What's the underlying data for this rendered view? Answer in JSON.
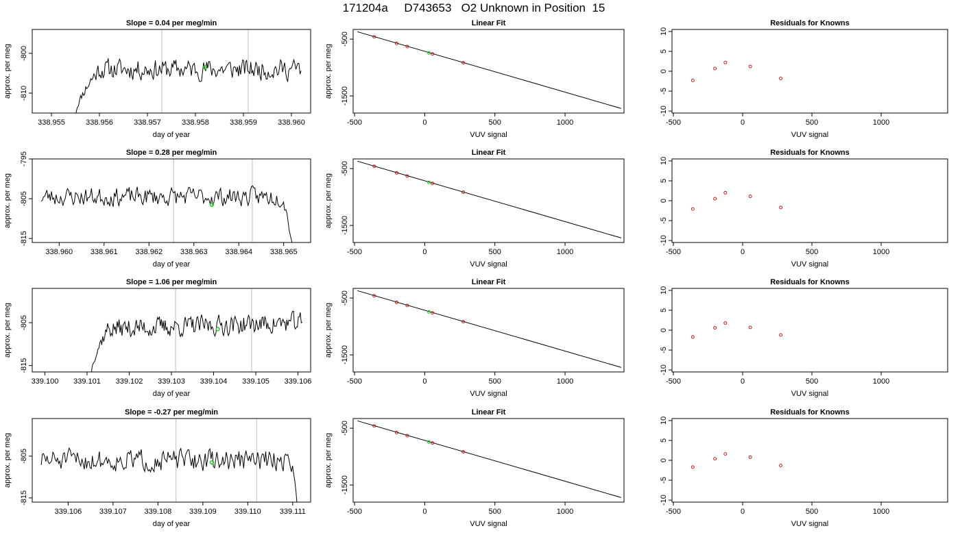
{
  "header": {
    "title": "171204a     D743653   O2 Unknown in Position  15"
  },
  "colors": {
    "trace": "#000000",
    "point": "#cc0000",
    "unknown": "#22cc22",
    "event_line": "#c8c8c8",
    "frame": "#000000"
  },
  "chart_data": [
    {
      "type": "line",
      "title": "Slope =  0.04  per meg/min",
      "xlabel": "day of year",
      "ylabel": "approx. per meg",
      "xlim": [
        338.9546,
        338.9604
      ],
      "ylim": [
        -815,
        -794
      ],
      "xticks": [
        "338.955",
        "338.956",
        "338.957",
        "338.958",
        "338.959",
        "338.960"
      ],
      "yticks": [
        "-800",
        "-810"
      ],
      "trace": {
        "x_start": 338.9555,
        "x_end": 338.9602,
        "baseline": -804,
        "noise": 2.2,
        "rise_from": -816,
        "rise_len": 0.0005,
        "seed": 11
      },
      "event_lines_x": [
        338.9573,
        338.9591
      ],
      "unknown_point": {
        "x": 338.9582,
        "y": -803.5
      }
    },
    {
      "type": "scatter",
      "title": "Linear Fit",
      "xlabel": "VUV signal",
      "ylabel": "approx. per meg",
      "xlim": [
        -510,
        1420
      ],
      "ylim": [
        -1800,
        -330
      ],
      "xticks": [
        "-500",
        "0",
        "500",
        "1000"
      ],
      "yticks": [
        "-500",
        "-1500"
      ],
      "fit_line": {
        "x": [
          -480,
          1400
        ],
        "y": [
          -370,
          -1720
        ]
      },
      "knowns": {
        "x": [
          -360,
          -200,
          -125,
          55,
          275
        ],
        "y": [
          -460,
          -575,
          -630,
          -760,
          -915
        ]
      },
      "unknown": {
        "x": 30,
        "y": -742
      }
    },
    {
      "type": "scatter",
      "title": "Residuals for Knowns",
      "xlabel": "VUV signal",
      "ylabel": "",
      "xlim": [
        -510,
        1480
      ],
      "ylim": [
        -10.5,
        10.5
      ],
      "xticks": [
        "-500",
        "0",
        "500",
        "1000"
      ],
      "yticks": [
        "-10",
        "-5",
        "0",
        "5",
        "10"
      ],
      "residuals": {
        "x": [
          -360,
          -200,
          -125,
          55,
          275
        ],
        "y": [
          -2.3,
          0.7,
          2.2,
          1.2,
          -1.8
        ]
      }
    },
    {
      "type": "line",
      "title": "Slope =  0.28  per meg/min",
      "xlabel": "day of year",
      "ylabel": "approx. per meg",
      "xlim": [
        338.9594,
        338.9656
      ],
      "ylim": [
        -816,
        -795
      ],
      "xticks": [
        "338.960",
        "338.961",
        "338.962",
        "338.963",
        "338.964",
        "338.965"
      ],
      "yticks": [
        "-795",
        "-805",
        "-815"
      ],
      "trace": {
        "x_start": 338.9596,
        "x_end": 338.9652,
        "baseline": -804.5,
        "noise": 2.0,
        "fall_to": -817,
        "fall_len": 0.0002,
        "seed": 23
      },
      "event_lines_x": [
        338.96255,
        338.9643
      ],
      "unknown_point": {
        "x": 338.9634,
        "y": -806.5
      }
    },
    {
      "type": "scatter",
      "title": "Linear Fit",
      "xlabel": "VUV signal",
      "ylabel": "approx. per meg",
      "xlim": [
        -510,
        1420
      ],
      "ylim": [
        -1800,
        -330
      ],
      "xticks": [
        "-500",
        "0",
        "500",
        "1000"
      ],
      "yticks": [
        "-500",
        "-1500"
      ],
      "fit_line": {
        "x": [
          -480,
          1400
        ],
        "y": [
          -370,
          -1720
        ]
      },
      "knowns": {
        "x": [
          -360,
          -200,
          -125,
          55,
          275
        ],
        "y": [
          -460,
          -575,
          -630,
          -760,
          -915
        ]
      },
      "unknown": {
        "x": 30,
        "y": -742
      }
    },
    {
      "type": "scatter",
      "title": "Residuals for Knowns",
      "xlabel": "VUV signal",
      "ylabel": "",
      "xlim": [
        -510,
        1480
      ],
      "ylim": [
        -10.5,
        10.5
      ],
      "xticks": [
        "-500",
        "0",
        "500",
        "1000"
      ],
      "yticks": [
        "-10",
        "-5",
        "0",
        "5",
        "10"
      ],
      "residuals": {
        "x": [
          -360,
          -200,
          -125,
          55,
          275
        ],
        "y": [
          -2.1,
          0.5,
          2.0,
          1.1,
          -1.7
        ]
      }
    },
    {
      "type": "line",
      "title": "Slope =  1.06  per meg/min",
      "xlabel": "day of year",
      "ylabel": "approx. per meg",
      "xlim": [
        339.0997,
        339.1063
      ],
      "ylim": [
        -816.5,
        -797
      ],
      "xticks": [
        "339.100",
        "339.101",
        "339.102",
        "339.103",
        "339.104",
        "339.105",
        "339.106"
      ],
      "yticks": [
        "-805",
        "-815"
      ],
      "trace": {
        "x_start": 339.1011,
        "x_end": 339.1061,
        "baseline": -806.5,
        "noise": 2.0,
        "rise_from": -817,
        "rise_len": 0.0004,
        "trend": 1.5,
        "seed": 37
      },
      "event_lines_x": [
        339.1031,
        339.1049
      ],
      "unknown_point": {
        "x": 339.1041,
        "y": -806.5
      }
    },
    {
      "type": "scatter",
      "title": "Linear Fit",
      "xlabel": "VUV signal",
      "ylabel": "approx. per meg",
      "xlim": [
        -510,
        1420
      ],
      "ylim": [
        -1800,
        -330
      ],
      "xticks": [
        "-500",
        "0",
        "500",
        "1000"
      ],
      "yticks": [
        "-500",
        "-1500"
      ],
      "fit_line": {
        "x": [
          -480,
          1400
        ],
        "y": [
          -370,
          -1720
        ]
      },
      "knowns": {
        "x": [
          -360,
          -200,
          -125,
          55,
          275
        ],
        "y": [
          -460,
          -575,
          -630,
          -760,
          -915
        ]
      },
      "unknown": {
        "x": 30,
        "y": -742
      }
    },
    {
      "type": "scatter",
      "title": "Residuals for Knowns",
      "xlabel": "VUV signal",
      "ylabel": "",
      "xlim": [
        -510,
        1480
      ],
      "ylim": [
        -10.5,
        10.5
      ],
      "xticks": [
        "-500",
        "0",
        "500",
        "1000"
      ],
      "yticks": [
        "-10",
        "-5",
        "0",
        "5",
        "10"
      ],
      "residuals": {
        "x": [
          -360,
          -200,
          -125,
          55,
          275
        ],
        "y": [
          -1.7,
          0.6,
          1.8,
          0.7,
          -1.2
        ]
      }
    },
    {
      "type": "line",
      "title": "Slope =  -0.27  per meg/min",
      "xlabel": "day of year",
      "ylabel": "approx. per meg",
      "xlim": [
        339.1052,
        339.1114
      ],
      "ylim": [
        -816,
        -796
      ],
      "xticks": [
        "339.106",
        "339.107",
        "339.108",
        "339.109",
        "339.110",
        "339.111"
      ],
      "yticks": [
        "-805",
        "-815"
      ],
      "trace": {
        "x_start": 339.1054,
        "x_end": 339.1111,
        "baseline": -806,
        "noise": 2.2,
        "fall_to": -817,
        "fall_len": 0.0001,
        "seed": 51
      },
      "event_lines_x": [
        339.1084,
        339.1102
      ],
      "unknown_point": {
        "x": 339.1092,
        "y": -806.5
      }
    },
    {
      "type": "scatter",
      "title": "Linear Fit",
      "xlabel": "VUV signal",
      "ylabel": "approx. per meg",
      "xlim": [
        -510,
        1420
      ],
      "ylim": [
        -1800,
        -330
      ],
      "xticks": [
        "-500",
        "0",
        "500",
        "1000"
      ],
      "yticks": [
        "-500",
        "-1500"
      ],
      "fit_line": {
        "x": [
          -480,
          1400
        ],
        "y": [
          -370,
          -1720
        ]
      },
      "knowns": {
        "x": [
          -360,
          -200,
          -125,
          55,
          275
        ],
        "y": [
          -460,
          -575,
          -630,
          -760,
          -915
        ]
      },
      "unknown": {
        "x": 30,
        "y": -742
      }
    },
    {
      "type": "scatter",
      "title": "Residuals for Knowns",
      "xlabel": "VUV signal",
      "ylabel": "",
      "xlim": [
        -510,
        1480
      ],
      "ylim": [
        -10.5,
        10.5
      ],
      "xticks": [
        "-500",
        "0",
        "500",
        "1000"
      ],
      "yticks": [
        "-10",
        "-5",
        "0",
        "5",
        "10"
      ],
      "residuals": {
        "x": [
          -360,
          -200,
          -125,
          55,
          275
        ],
        "y": [
          -1.7,
          0.4,
          1.6,
          0.8,
          -1.3
        ]
      }
    }
  ]
}
